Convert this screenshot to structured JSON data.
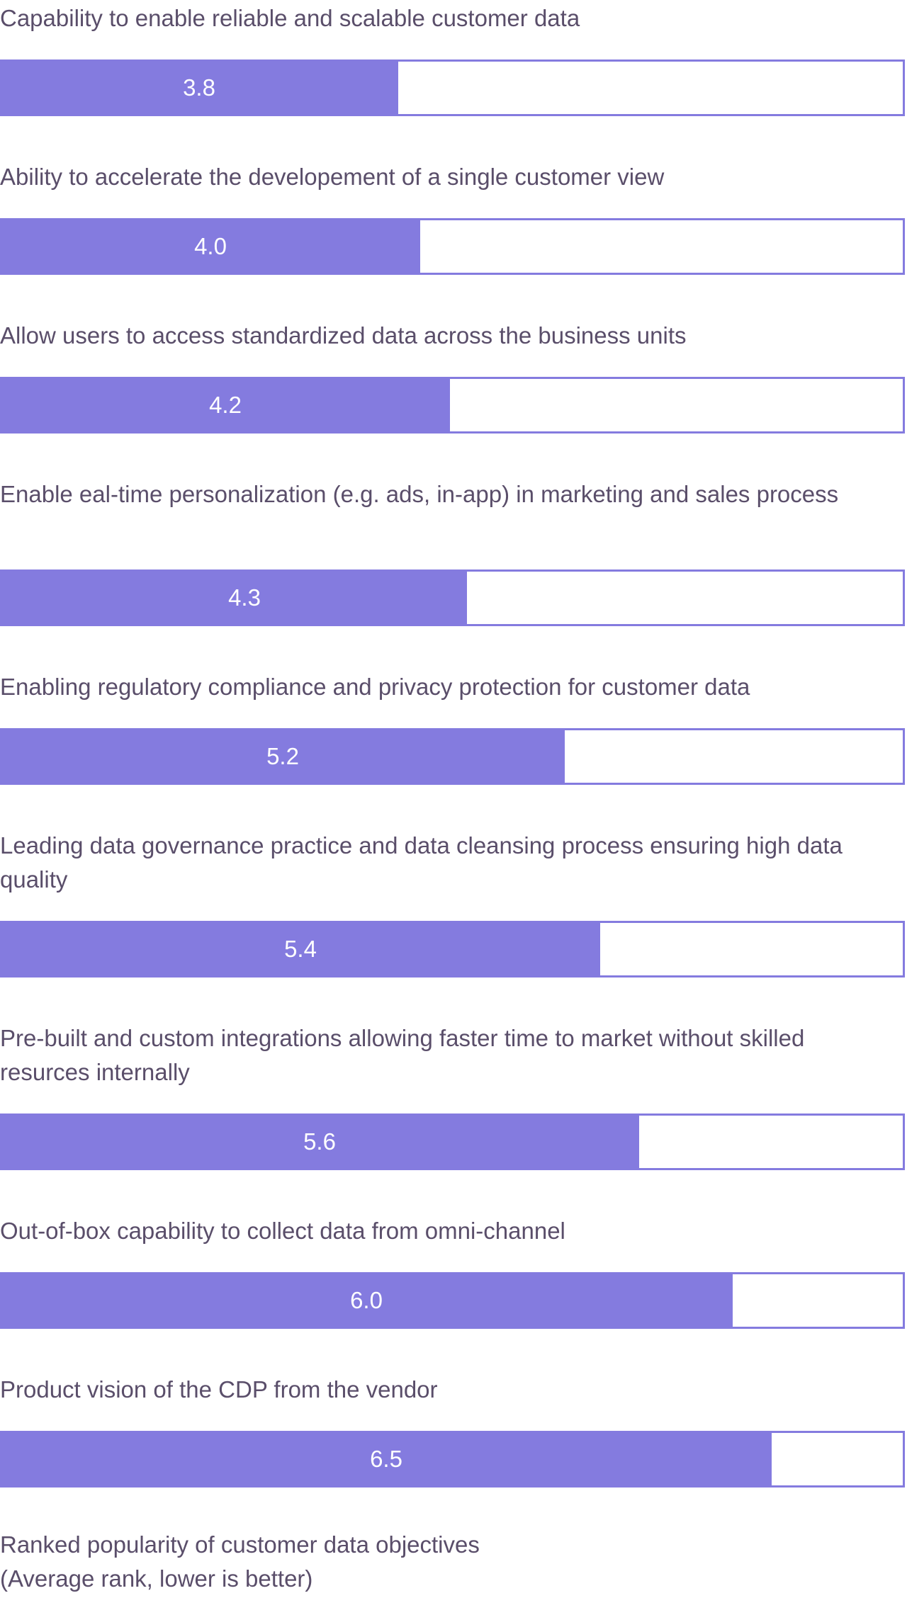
{
  "chart_data": {
    "type": "bar",
    "orientation": "horizontal",
    "categories": [
      "Capability to enable reliable and scalable customer data",
      "Ability to accelerate the developement of a single customer view",
      "Allow users to access standardized data across the business units",
      "Enable eal-time personalization (e.g. ads, in-app) in marketing and sales process",
      "Enabling regulatory compliance and privacy protection for customer data",
      "Leading data governance practice and data cleansing process ensuring high data quality",
      "Pre-built and custom integrations allowing faster time to market without skilled resurces internally",
      "Out-of-box capability to collect data from omni-channel",
      "Product vision of the CDP from the vendor"
    ],
    "values": [
      3.8,
      4.0,
      4.2,
      4.3,
      5.2,
      5.4,
      5.6,
      6.0,
      6.5
    ],
    "value_labels": [
      "3.8",
      "4.0",
      "4.2",
      "4.3",
      "5.2",
      "5.4",
      "5.6",
      "6.0",
      "6.5"
    ],
    "fill_fractions": [
      0.439,
      0.463,
      0.496,
      0.515,
      0.623,
      0.662,
      0.705,
      0.808,
      0.851
    ],
    "title": "Ranked popularity of customer data objectives",
    "subtitle": "(Average rank, lower is better)",
    "grid": false,
    "legend": "none"
  },
  "colors": {
    "bar": "#847bdf",
    "text": "#5a4e6a",
    "value_text": "#ffffff",
    "background": "#ffffff"
  }
}
